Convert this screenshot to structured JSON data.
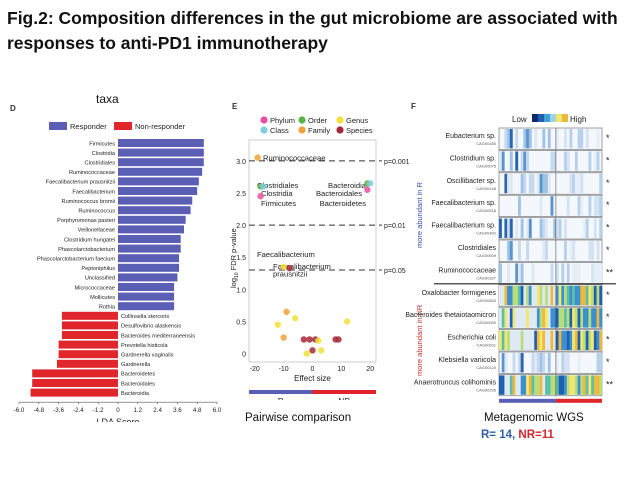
{
  "slide": {
    "title": "Fig.2: Composition differences in the gut microbiome are associated with responses to anti-PD1 immunotherapy",
    "caption_taxa": "taxa",
    "caption_pairwise": "Pairwise comparison",
    "caption_wgs": "Metagenomic WGS",
    "caption_counts_r": "R= 14",
    "caption_counts_sep": ", ",
    "caption_counts_nr": "NR=11",
    "colors": {
      "r_blue": "#2e5fa8",
      "nr_red": "#d0262c"
    }
  },
  "panels": {
    "d": "D",
    "e": "E",
    "f": "F"
  },
  "chart_data": [
    {
      "type": "bar",
      "panel": "D",
      "legend": [
        "Responder",
        "Non-responder"
      ],
      "legend_colors": [
        "#5a5fb5",
        "#e0262a"
      ],
      "xlabel": "LDA Score",
      "xticks": [
        "-6.0",
        "-4.8",
        "-3.6",
        "-2.4",
        "-1.2",
        "0",
        "1.2",
        "2.4",
        "3.6",
        "4.8",
        "6.0"
      ],
      "xlim": [
        -6.0,
        6.0
      ],
      "categories": [
        "Firmicutes",
        "Clostridia",
        "Clostridiales",
        "Ruminococcaceae",
        "Faecalibacterium prausnitzii",
        "Faecalibacterium",
        "Ruminococcus bromii",
        "Ruminococcus",
        "Porphyromonas pasteri",
        "Veillonellaceae",
        "Clostridium hungatei",
        "Phascolarctobacterium",
        "Phascolarctobacterium faecium",
        "Peptoniphilus",
        "Unclassified",
        "Micrococcaceae",
        "Mollicutes",
        "Rothia",
        "Collinsella stercoris",
        "Desulfovibrio alaskensis",
        "Bacteroides mediterraneensis",
        "Prevotella histicola",
        "Gardnerella vaginalis",
        "Gardnerella",
        "Bacteroidetes",
        "Bacteroidales",
        "Bacteroidia"
      ],
      "values": [
        5.2,
        5.2,
        5.2,
        5.1,
        4.9,
        4.8,
        4.5,
        4.4,
        4.1,
        4.0,
        3.8,
        3.8,
        3.7,
        3.7,
        3.6,
        3.4,
        3.4,
        3.4,
        -3.4,
        -3.4,
        -3.4,
        -3.6,
        -3.6,
        -3.7,
        -5.2,
        -5.2,
        -5.3
      ]
    },
    {
      "type": "scatter",
      "panel": "E",
      "xlabel": "Effect size",
      "ylabel": "log10 FDR p-value",
      "ylabel_base": "log",
      "ylabel_sub": "10",
      "ylabel_rest": " FDR p-value",
      "xlim": [
        -22,
        22
      ],
      "ylim": [
        -0.1,
        3.2
      ],
      "xticks": [
        "-20",
        "-10",
        "0",
        "10",
        "20"
      ],
      "yticks": [
        "0",
        "0.5",
        "1.0",
        "1.5",
        "2.0",
        "2.5",
        "3.0"
      ],
      "legend": [
        {
          "name": "Phylum",
          "color": "#e84fa0"
        },
        {
          "name": "Order",
          "color": "#5bb445"
        },
        {
          "name": "Genus",
          "color": "#f2e13a"
        },
        {
          "name": "Class",
          "color": "#7fcfe0"
        },
        {
          "name": "Family",
          "color": "#f2a13a"
        },
        {
          "name": "Species",
          "color": "#a8283a"
        }
      ],
      "thresholds": [
        {
          "y": 3.0,
          "label": "p=0.001"
        },
        {
          "y": 2.0,
          "label": "p=0.01"
        },
        {
          "y": 1.3,
          "label": "p=0.05"
        }
      ],
      "annotations": [
        "Ruminococcaceae",
        "Clostridiales",
        "Clostridia",
        "Firmicutes",
        "Bacteroidia",
        "Bacteroidales",
        "Bacteroidetes",
        "Faecalibacterium",
        "Faecalibacterium",
        "prausnitzii"
      ],
      "points": [
        {
          "x": -19,
          "y": 3.05,
          "color": "#f2a13a"
        },
        {
          "x": -18,
          "y": 2.6,
          "color": "#5bb445"
        },
        {
          "x": -17,
          "y": 2.6,
          "color": "#7fcfe0"
        },
        {
          "x": -18,
          "y": 2.45,
          "color": "#e84fa0"
        },
        {
          "x": 19,
          "y": 2.65,
          "color": "#5bb445"
        },
        {
          "x": 20,
          "y": 2.65,
          "color": "#7fcfe0"
        },
        {
          "x": 19,
          "y": 2.55,
          "color": "#e84fa0"
        },
        {
          "x": -10,
          "y": 1.35,
          "color": "#f2e13a"
        },
        {
          "x": -8,
          "y": 1.33,
          "color": "#a8283a"
        },
        {
          "x": -9,
          "y": 0.65,
          "color": "#f2a13a"
        },
        {
          "x": -6,
          "y": 0.55,
          "color": "#f2e13a"
        },
        {
          "x": -12,
          "y": 0.45,
          "color": "#f2e13a"
        },
        {
          "x": -10,
          "y": 0.25,
          "color": "#f2a13a"
        },
        {
          "x": -3,
          "y": 0.22,
          "color": "#a8283a"
        },
        {
          "x": -1,
          "y": 0.22,
          "color": "#a8283a"
        },
        {
          "x": 1,
          "y": 0.22,
          "color": "#a8283a"
        },
        {
          "x": 2,
          "y": 0.2,
          "color": "#f2e13a"
        },
        {
          "x": 0,
          "y": 0.05,
          "color": "#a8283a"
        },
        {
          "x": 8,
          "y": 0.22,
          "color": "#a8283a"
        },
        {
          "x": 9,
          "y": 0.22,
          "color": "#a8283a"
        },
        {
          "x": 12,
          "y": 0.5,
          "color": "#f2e13a"
        },
        {
          "x": -2,
          "y": 0.0,
          "color": "#f2e13a"
        },
        {
          "x": 3,
          "y": 0.05,
          "color": "#f2e13a"
        }
      ],
      "group_labels": [
        "R",
        "NR"
      ]
    },
    {
      "type": "heatmap",
      "panel": "F",
      "legend_low": "Low",
      "legend_high": "High",
      "side_label_top": "more abundant in R",
      "side_label_bottom": "more abundant in NR",
      "group_labels": [
        "R",
        "NR"
      ],
      "rows": [
        {
          "name": "Eubacterium sp.",
          "id": "CAG00180",
          "sig": "*"
        },
        {
          "name": "Clostridium sp.",
          "id": "CAG00075",
          "sig": "*"
        },
        {
          "name": "Oscillibacter sp.",
          "id": "CAG00148",
          "sig": "*"
        },
        {
          "name": "Faecalibacterium sp.",
          "id": "CAG00518",
          "sig": "*"
        },
        {
          "name": "Faecalibacterium sp.",
          "id": "CAG00492",
          "sig": "*"
        },
        {
          "name": "Clostridiales",
          "id": "CAG00609",
          "sig": "*"
        },
        {
          "name": "Ruminococcaceae",
          "id": "CAG00327",
          "sig": "**"
        },
        {
          "name": "Oxalobacter formigenes",
          "id": "CAG00834",
          "sig": "*"
        },
        {
          "name": "Bacteroides thetaiotaomicron",
          "id": "CAG00050",
          "sig": "*"
        },
        {
          "name": "Escherichia coli",
          "id": "CAG00011",
          "sig": "*"
        },
        {
          "name": "Klebsiella variicola",
          "id": "CAG00124",
          "sig": "*"
        },
        {
          "name": "Anaerotruncus colihominis",
          "id": "CAG00295",
          "sig": "**"
        }
      ]
    }
  ]
}
